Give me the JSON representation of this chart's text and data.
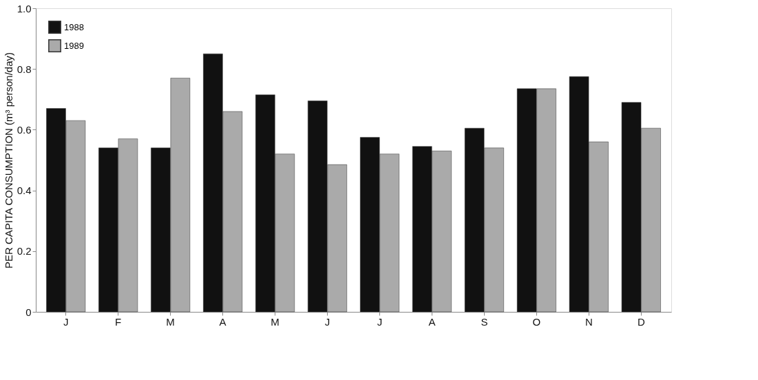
{
  "chart_data": {
    "type": "bar",
    "ylabel": "PER CAPITA CONSUMPTION (m³ person/day)",
    "categories": [
      "J",
      "F",
      "M",
      "A",
      "M",
      "J",
      "J",
      "A",
      "S",
      "O",
      "N",
      "D"
    ],
    "series": [
      {
        "name": "1988",
        "color": "#111111",
        "values": [
          0.67,
          0.54,
          0.54,
          0.85,
          0.715,
          0.695,
          0.575,
          0.545,
          0.605,
          0.735,
          0.775,
          0.69
        ]
      },
      {
        "name": "1989",
        "color": "#aaaaaa",
        "values": [
          0.63,
          0.57,
          0.77,
          0.66,
          0.52,
          0.485,
          0.52,
          0.53,
          0.54,
          0.735,
          0.56,
          0.605
        ]
      }
    ],
    "ylim": [
      0,
      1
    ],
    "yticks": [
      0,
      0.2,
      0.4,
      0.6,
      0.8,
      {
        "value": 1,
        "label": "1.0"
      }
    ],
    "grid": false,
    "legend": "top left"
  }
}
